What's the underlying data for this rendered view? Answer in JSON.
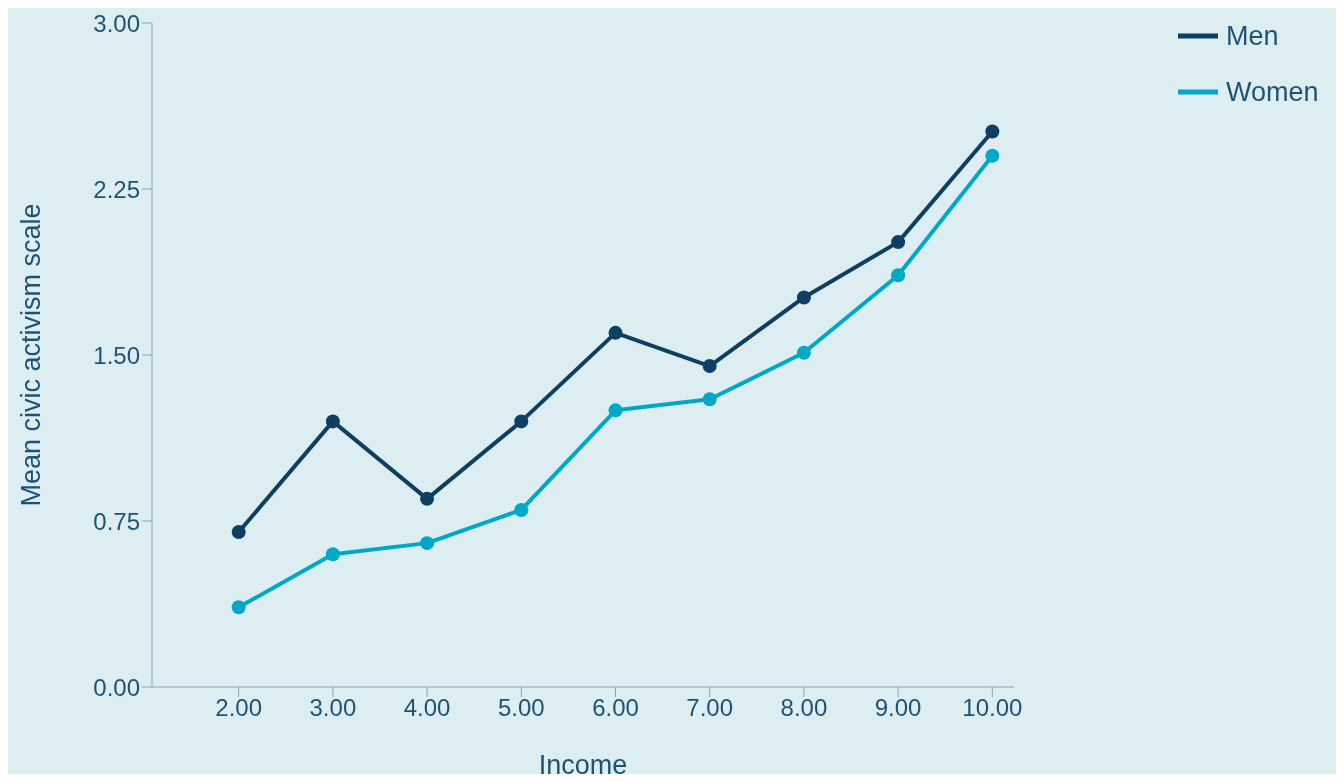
{
  "chart_data": {
    "type": "line",
    "xlabel": "Income",
    "ylabel": "Mean civic activism scale",
    "x": [
      2,
      3,
      4,
      5,
      6,
      7,
      8,
      9,
      10
    ],
    "series": [
      {
        "name": "Men",
        "color": "#0e3f63",
        "values": [
          0.7,
          1.2,
          0.85,
          1.2,
          1.6,
          1.45,
          1.76,
          2.01,
          2.51
        ]
      },
      {
        "name": "Women",
        "color": "#00a8c8",
        "values": [
          0.36,
          0.6,
          0.65,
          0.8,
          1.25,
          1.3,
          1.51,
          1.86,
          2.4
        ]
      }
    ],
    "xlim": [
      1.08,
      10.23
    ],
    "xticks": [
      {
        "value": 2,
        "label": "2.00"
      },
      {
        "value": 3,
        "label": "3.00"
      },
      {
        "value": 4,
        "label": "4.00"
      },
      {
        "value": 5,
        "label": "5.00"
      },
      {
        "value": 6,
        "label": "6.00"
      },
      {
        "value": 7,
        "label": "7.00"
      },
      {
        "value": 8,
        "label": "8.00"
      },
      {
        "value": 9,
        "label": "9.00"
      },
      {
        "value": 10,
        "label": "10.00"
      }
    ],
    "ylim": [
      0,
      3
    ],
    "yticks": [
      {
        "value": 0,
        "label": "0.00"
      },
      {
        "value": 0.75,
        "label": "0.75"
      },
      {
        "value": 1.5,
        "label": "1.50"
      },
      {
        "value": 2.25,
        "label": "2.25"
      },
      {
        "value": 3,
        "label": "3.00"
      }
    ],
    "grid": false,
    "legend": "top right",
    "marker": "circle",
    "line_style": "solid"
  }
}
